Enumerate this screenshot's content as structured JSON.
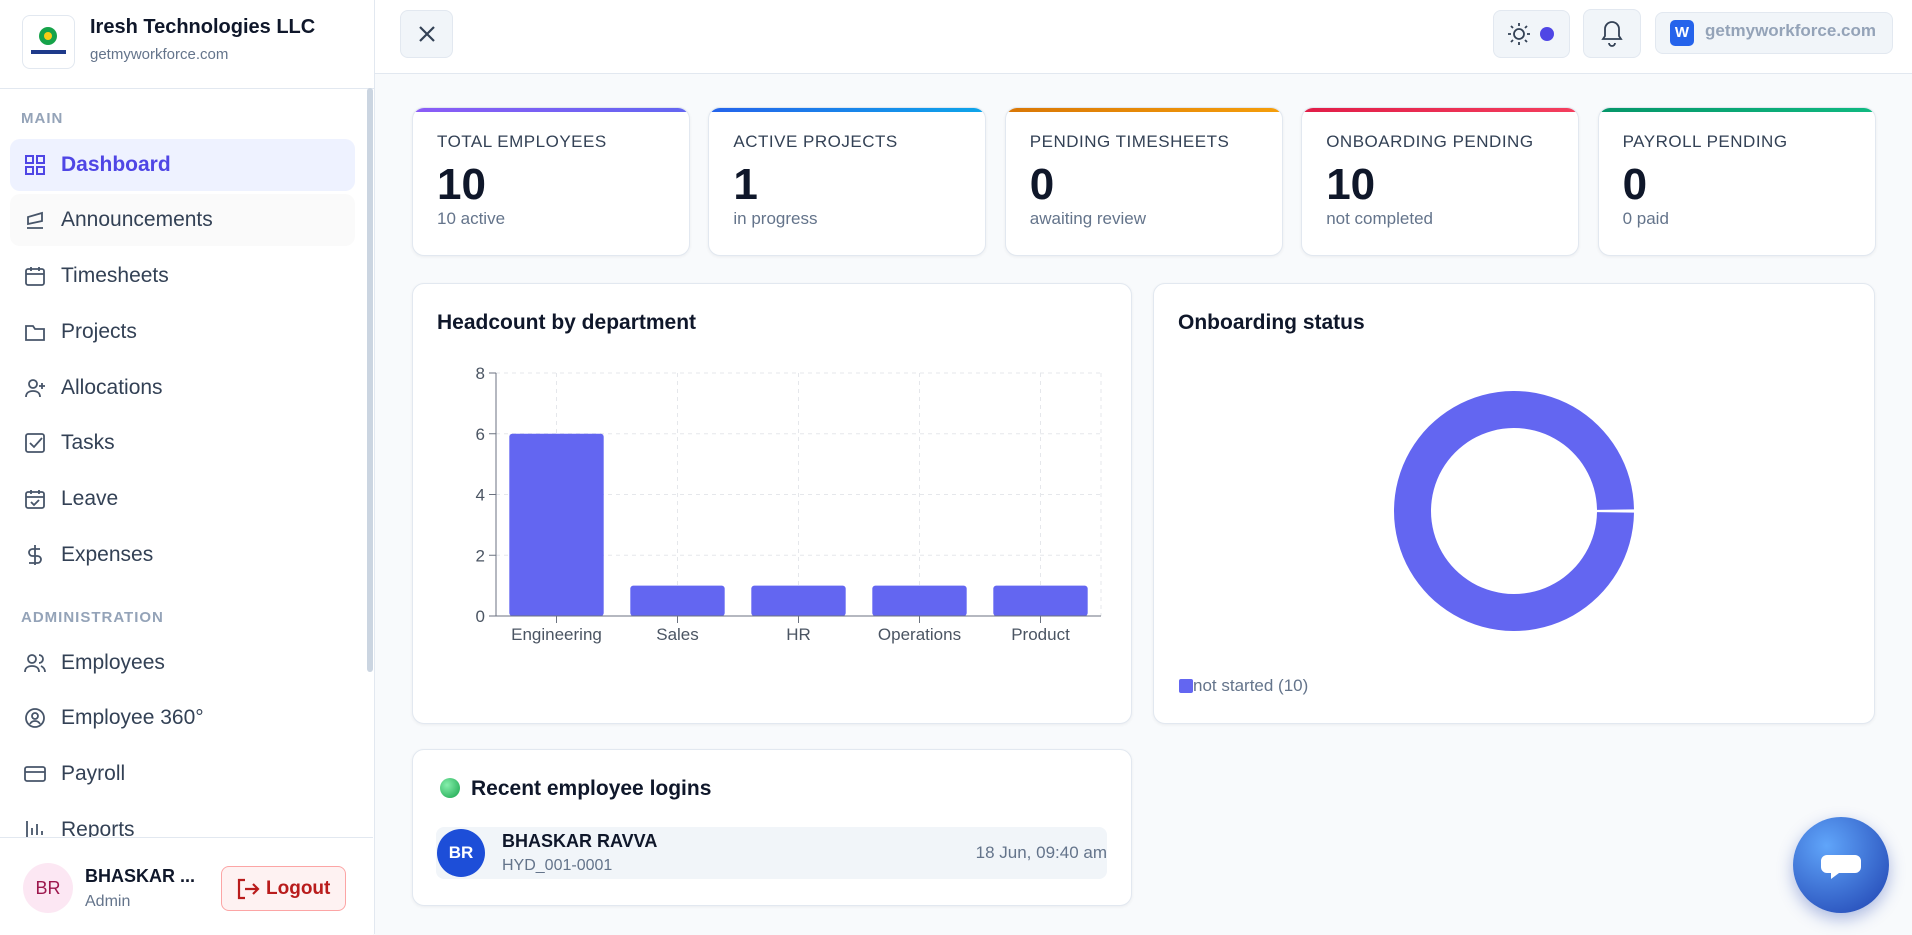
{
  "sidebar": {
    "company": "Iresh Technologies LLC",
    "domain": "getmyworkforce.com",
    "sections": [
      {
        "label": "MAIN",
        "items": [
          "Dashboard",
          "Announcements",
          "Timesheets",
          "Projects",
          "Allocations",
          "Tasks",
          "Leave",
          "Expenses"
        ]
      },
      {
        "label": "ADMINISTRATION",
        "items": [
          "Employees",
          "Employee 360°",
          "Payroll",
          "Reports"
        ]
      }
    ],
    "user": {
      "initials": "BR",
      "name": "BHASKAR ...",
      "role": "Admin"
    },
    "logout": "Logout"
  },
  "header": {
    "workspace_badge": "W",
    "workspace": "getmyworkforce.com"
  },
  "kpis": [
    {
      "label": "TOTAL EMPLOYEES",
      "value": 10,
      "note": "10 active"
    },
    {
      "label": "ACTIVE PROJECTS",
      "value": 1,
      "note": "in progress"
    },
    {
      "label": "PENDING TIMESHEETS",
      "value": 0,
      "note": "awaiting review"
    },
    {
      "label": "ONBOARDING PENDING",
      "value": 10,
      "note": "not completed"
    },
    {
      "label": "PAYROLL PENDING",
      "value": 0,
      "note": "0 paid"
    }
  ],
  "headcount_chart": {
    "type": "bar",
    "title": "Headcount by department",
    "categories": [
      "Engineering",
      "Sales",
      "HR",
      "Operations",
      "Product"
    ],
    "values": [
      6,
      1,
      1,
      1,
      1
    ],
    "color": "#6366f1",
    "ylim": [
      0,
      8
    ],
    "yticks": [
      0,
      2,
      4,
      6,
      8
    ],
    "grid": true
  },
  "onboarding_chart": {
    "type": "pie",
    "title": "Onboarding status",
    "categories": [
      "not started (10)"
    ],
    "values": [
      10
    ],
    "color": "#6366f1"
  },
  "recent_logins": {
    "title": "Recent employee logins",
    "rows": [
      {
        "initials": "BR",
        "name": "BHASKAR RAVVA",
        "id": "HYD_001-0001",
        "time": "18 Jun, 09:40 am"
      }
    ]
  }
}
